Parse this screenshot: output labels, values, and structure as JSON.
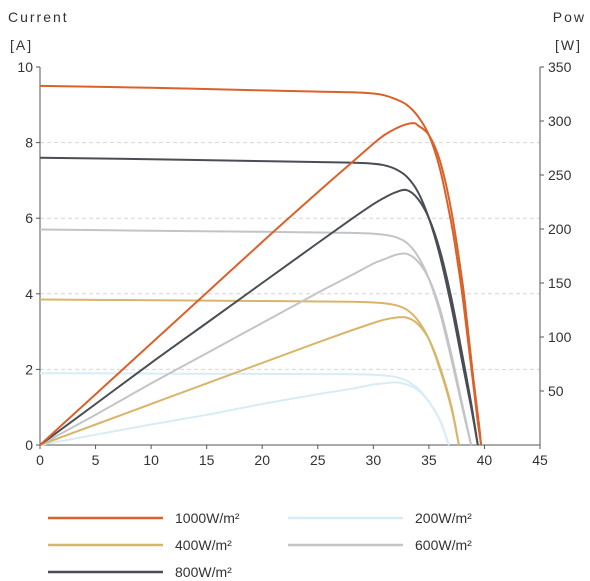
{
  "chart_data": {
    "type": "line",
    "y_left_title": "Current",
    "y_left_unit": "[A]",
    "y_right_title": "Pow",
    "y_right_unit": "[W]",
    "xlim": [
      0,
      45
    ],
    "ylim_left": [
      0,
      10
    ],
    "ylim_right": [
      0,
      350
    ],
    "x_ticks": [
      0,
      5,
      10,
      15,
      20,
      25,
      30,
      35,
      40,
      45
    ],
    "y_left_ticks": [
      0,
      2,
      4,
      6,
      8,
      10
    ],
    "y_right_ticks": [
      50,
      100,
      150,
      200,
      250,
      300,
      350
    ],
    "grid": "dashed horizontal at left ticks 2, 4, 6, 8",
    "legend_position": "bottom",
    "series": [
      {
        "name": "1000W/m²",
        "color": "#d9622b",
        "current_curve": [
          [
            0,
            9.5
          ],
          [
            10,
            9.45
          ],
          [
            20,
            9.38
          ],
          [
            25,
            9.35
          ],
          [
            28,
            9.33
          ],
          [
            30,
            9.3
          ],
          [
            31,
            9.25
          ],
          [
            32,
            9.15
          ],
          [
            33,
            9.0
          ],
          [
            34,
            8.7
          ],
          [
            35,
            8.2
          ],
          [
            36,
            7.3
          ],
          [
            37,
            5.9
          ],
          [
            37.5,
            5.0
          ],
          [
            38,
            4.0
          ],
          [
            38.5,
            2.8
          ],
          [
            39,
            1.6
          ],
          [
            39.4,
            0.6
          ],
          [
            39.7,
            0
          ]
        ],
        "power_curve": [
          [
            0,
            0
          ],
          [
            5,
            47
          ],
          [
            10,
            94
          ],
          [
            15,
            141
          ],
          [
            20,
            188
          ],
          [
            25,
            234
          ],
          [
            28,
            261
          ],
          [
            30,
            279
          ],
          [
            31,
            287
          ],
          [
            32,
            293
          ],
          [
            33,
            297
          ],
          [
            33.7,
            298
          ],
          [
            34,
            296
          ],
          [
            35,
            287
          ],
          [
            36,
            263
          ],
          [
            37,
            218
          ],
          [
            38,
            152
          ],
          [
            38.5,
            108
          ],
          [
            39,
            62
          ],
          [
            39.5,
            20
          ],
          [
            39.7,
            0
          ]
        ]
      },
      {
        "name": "800W/m²",
        "color": "#4a4d55",
        "current_curve": [
          [
            0,
            7.6
          ],
          [
            10,
            7.56
          ],
          [
            20,
            7.51
          ],
          [
            28,
            7.47
          ],
          [
            30,
            7.44
          ],
          [
            31,
            7.4
          ],
          [
            32,
            7.3
          ],
          [
            33,
            7.1
          ],
          [
            34,
            6.7
          ],
          [
            35,
            6.0
          ],
          [
            36,
            5.0
          ],
          [
            37,
            3.7
          ],
          [
            38,
            2.2
          ],
          [
            38.8,
            1.0
          ],
          [
            39.4,
            0
          ]
        ],
        "power_curve": [
          [
            0,
            0
          ],
          [
            5,
            38
          ],
          [
            10,
            76
          ],
          [
            15,
            113
          ],
          [
            20,
            150
          ],
          [
            25,
            187
          ],
          [
            28,
            209
          ],
          [
            30,
            223
          ],
          [
            31,
            229
          ],
          [
            32,
            234
          ],
          [
            33,
            236
          ],
          [
            34,
            228
          ],
          [
            35,
            210
          ],
          [
            36,
            180
          ],
          [
            37,
            137
          ],
          [
            38,
            84
          ],
          [
            38.8,
            39
          ],
          [
            39.4,
            0
          ]
        ]
      },
      {
        "name": "600W/m²",
        "color": "#c3c4c8",
        "current_curve": [
          [
            0,
            5.7
          ],
          [
            10,
            5.67
          ],
          [
            20,
            5.64
          ],
          [
            28,
            5.61
          ],
          [
            30,
            5.59
          ],
          [
            31,
            5.56
          ],
          [
            32,
            5.5
          ],
          [
            33,
            5.35
          ],
          [
            34,
            5.0
          ],
          [
            35,
            4.4
          ],
          [
            36,
            3.5
          ],
          [
            37,
            2.3
          ],
          [
            38,
            1.0
          ],
          [
            38.8,
            0
          ]
        ],
        "power_curve": [
          [
            0,
            0
          ],
          [
            5,
            28
          ],
          [
            10,
            57
          ],
          [
            15,
            85
          ],
          [
            20,
            113
          ],
          [
            25,
            141
          ],
          [
            28,
            157
          ],
          [
            30,
            168
          ],
          [
            31,
            172
          ],
          [
            32,
            176
          ],
          [
            33,
            177
          ],
          [
            34,
            170
          ],
          [
            35,
            154
          ],
          [
            36,
            126
          ],
          [
            37,
            85
          ],
          [
            38,
            38
          ],
          [
            38.8,
            0
          ]
        ]
      },
      {
        "name": "400W/m²",
        "color": "#d9b56a",
        "current_curve": [
          [
            0,
            3.85
          ],
          [
            10,
            3.83
          ],
          [
            20,
            3.81
          ],
          [
            28,
            3.79
          ],
          [
            30,
            3.77
          ],
          [
            31,
            3.75
          ],
          [
            32,
            3.7
          ],
          [
            33,
            3.58
          ],
          [
            34,
            3.3
          ],
          [
            35,
            2.8
          ],
          [
            36,
            2.0
          ],
          [
            37,
            1.0
          ],
          [
            37.7,
            0
          ]
        ],
        "power_curve": [
          [
            0,
            0
          ],
          [
            5,
            19
          ],
          [
            10,
            38
          ],
          [
            15,
            57
          ],
          [
            20,
            76
          ],
          [
            25,
            95
          ],
          [
            28,
            106
          ],
          [
            30,
            113
          ],
          [
            31,
            116
          ],
          [
            32,
            118
          ],
          [
            33,
            118
          ],
          [
            34,
            112
          ],
          [
            35,
            98
          ],
          [
            36,
            72
          ],
          [
            37,
            37
          ],
          [
            37.7,
            0
          ]
        ]
      },
      {
        "name": "200W/m²",
        "color": "#d8ecf5",
        "current_curve": [
          [
            0,
            1.9
          ],
          [
            10,
            1.89
          ],
          [
            20,
            1.88
          ],
          [
            28,
            1.87
          ],
          [
            30,
            1.86
          ],
          [
            31,
            1.84
          ],
          [
            32,
            1.8
          ],
          [
            33,
            1.7
          ],
          [
            34,
            1.5
          ],
          [
            35,
            1.15
          ],
          [
            36,
            0.65
          ],
          [
            36.8,
            0
          ]
        ],
        "power_curve": [
          [
            0,
            0
          ],
          [
            5,
            9.5
          ],
          [
            10,
            19
          ],
          [
            15,
            28
          ],
          [
            20,
            38
          ],
          [
            25,
            47
          ],
          [
            28,
            52
          ],
          [
            30,
            56
          ],
          [
            31,
            57
          ],
          [
            32,
            58
          ],
          [
            33,
            56
          ],
          [
            34,
            51
          ],
          [
            35,
            40
          ],
          [
            36,
            23
          ],
          [
            36.8,
            0
          ]
        ]
      }
    ]
  }
}
